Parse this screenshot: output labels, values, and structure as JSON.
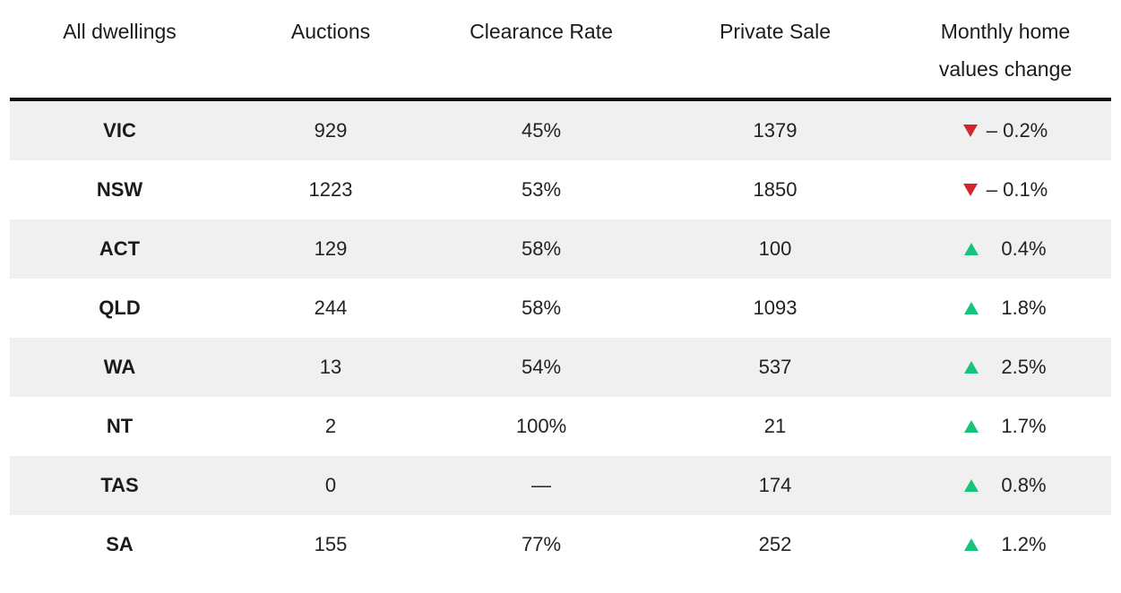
{
  "table": {
    "headers": [
      "All dwellings",
      "Auctions",
      "Clearance Rate",
      "Private Sale",
      "Monthly home values change"
    ],
    "rows": [
      {
        "region": "VIC",
        "auctions": "929",
        "clearance": "45%",
        "private": "1379",
        "direction": "down",
        "change": "– 0.2%"
      },
      {
        "region": "NSW",
        "auctions": "1223",
        "clearance": "53%",
        "private": "1850",
        "direction": "down",
        "change": "– 0.1%"
      },
      {
        "region": "ACT",
        "auctions": "129",
        "clearance": "58%",
        "private": "100",
        "direction": "up",
        "change": "0.4%"
      },
      {
        "region": "QLD",
        "auctions": "244",
        "clearance": "58%",
        "private": "1093",
        "direction": "up",
        "change": "1.8%"
      },
      {
        "region": "WA",
        "auctions": "13",
        "clearance": "54%",
        "private": "537",
        "direction": "up",
        "change": "2.5%"
      },
      {
        "region": "NT",
        "auctions": "2",
        "clearance": "100%",
        "private": "21",
        "direction": "up",
        "change": "1.7%"
      },
      {
        "region": "TAS",
        "auctions": "0",
        "clearance": "—",
        "private": "174",
        "direction": "up",
        "change": "0.8%"
      },
      {
        "region": "SA",
        "auctions": "155",
        "clearance": "77%",
        "private": "252",
        "direction": "up",
        "change": "1.2%"
      }
    ]
  },
  "colors": {
    "down_arrow": "#d0262d",
    "up_arrow": "#16c37a",
    "stripe": "#f0f0f0",
    "header_rule": "#111111"
  },
  "icons": {
    "down": "triangle-down-icon",
    "up": "triangle-up-icon"
  }
}
